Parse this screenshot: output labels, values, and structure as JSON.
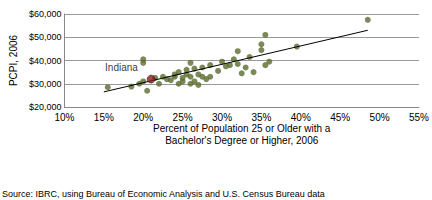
{
  "chart_data": {
    "type": "scatter",
    "x_label": "Percent of Population 25 or Older with a\nBachelor's Degree or Higher, 2006",
    "y_label": "PCPI, 2006",
    "source": "Source: IBRC, using Bureau of Economic Analysis and U.S. Census Bureau data",
    "series": [
      {
        "type": "scatter",
        "color": "#5a6b2e",
        "marker": "circle",
        "x": [
          15.5,
          18.5,
          19.5,
          20,
          20,
          20,
          20.5,
          21.5,
          22,
          22.5,
          23,
          23.5,
          24,
          24,
          24.5,
          24.5,
          25,
          25,
          25.5,
          25.5,
          26,
          26,
          26,
          26.5,
          26.5,
          27,
          27,
          27.5,
          27.5,
          28,
          28.5,
          28.5,
          29.5,
          30,
          30.5,
          31,
          31.5,
          32,
          32,
          32.5,
          33,
          33.5,
          34,
          35,
          35,
          35.5,
          35.5,
          36,
          39.5,
          48.5
        ],
        "values": [
          28500,
          28800,
          30000,
          31000,
          39000,
          40500,
          27000,
          32500,
          30000,
          33000,
          32000,
          31500,
          34000,
          33000,
          30000,
          35000,
          31000,
          32500,
          34000,
          36000,
          30000,
          33000,
          39000,
          31000,
          36500,
          34000,
          29500,
          37000,
          33000,
          32000,
          38000,
          33000,
          35500,
          39500,
          37500,
          38000,
          40500,
          38500,
          44000,
          34500,
          37000,
          41500,
          35000,
          47000,
          44500,
          51000,
          38000,
          39500,
          46000,
          57500
        ]
      },
      {
        "type": "line",
        "color": "#000000",
        "line_style": "solid",
        "x": [
          15,
          48.5
        ],
        "values": [
          26500,
          53000
        ]
      }
    ],
    "annotations": [
      {
        "text": "Indiana",
        "x": 21,
        "y": 32000,
        "color": "#8b1a1a"
      }
    ],
    "xlim": [
      10,
      55
    ],
    "xticks": [
      {
        "value": 10,
        "label": "10%"
      },
      {
        "value": 15,
        "label": "15%"
      },
      {
        "value": 20,
        "label": "20%"
      },
      {
        "value": 25,
        "label": "25%"
      },
      {
        "value": 30,
        "label": "30%"
      },
      {
        "value": 35,
        "label": "35%"
      },
      {
        "value": 40,
        "label": "40%"
      },
      {
        "value": 45,
        "label": "45%"
      },
      {
        "value": 50,
        "label": "50%"
      },
      {
        "value": 55,
        "label": "55%"
      }
    ],
    "ylim": [
      20000,
      60000
    ],
    "yticks": [
      {
        "value": 20000,
        "label": "$20,000"
      },
      {
        "value": 30000,
        "label": "$30,000"
      },
      {
        "value": 40000,
        "label": "$40,000"
      },
      {
        "value": 50000,
        "label": "$50,000"
      },
      {
        "value": 60000,
        "label": "$60,000"
      }
    ],
    "grid": "y"
  }
}
